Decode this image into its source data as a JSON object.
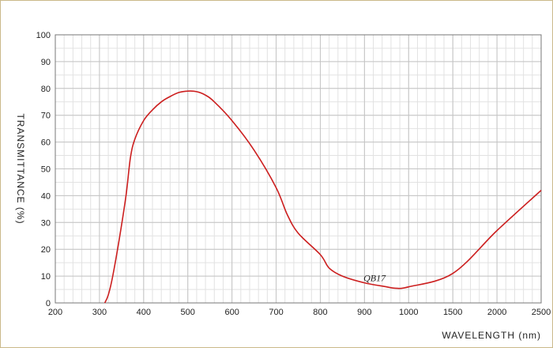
{
  "chart_data": {
    "type": "line",
    "title": "",
    "xlabel": "WAVELENGTH (nm)",
    "ylabel": "TRANSMITTANCE  (%)",
    "x_tick_labels": [
      "200",
      "300",
      "400",
      "500",
      "600",
      "700",
      "800",
      "900",
      "1000",
      "1500",
      "2000",
      "2500"
    ],
    "y_ticks": [
      0,
      10,
      20,
      30,
      40,
      50,
      60,
      70,
      80,
      90,
      100
    ],
    "ylim": [
      0,
      100
    ],
    "grid": true,
    "series_color": "#cc1f1f",
    "series": [
      {
        "name": "QB17",
        "points": [
          [
            312,
            0
          ],
          [
            320,
            3
          ],
          [
            330,
            10
          ],
          [
            345,
            24
          ],
          [
            360,
            40
          ],
          [
            370,
            54
          ],
          [
            380,
            61
          ],
          [
            400,
            68
          ],
          [
            420,
            72
          ],
          [
            440,
            75
          ],
          [
            460,
            77
          ],
          [
            480,
            78.5
          ],
          [
            500,
            79
          ],
          [
            520,
            78.8
          ],
          [
            540,
            77.5
          ],
          [
            560,
            75
          ],
          [
            600,
            68
          ],
          [
            650,
            57
          ],
          [
            700,
            43
          ],
          [
            725,
            33
          ],
          [
            750,
            26
          ],
          [
            800,
            18
          ],
          [
            820,
            13
          ],
          [
            850,
            10
          ],
          [
            900,
            7.5
          ],
          [
            950,
            6
          ],
          [
            970,
            5.5
          ],
          [
            1000,
            6
          ],
          [
            1500,
            11
          ],
          [
            2000,
            27
          ],
          [
            2500,
            42
          ]
        ]
      }
    ]
  }
}
